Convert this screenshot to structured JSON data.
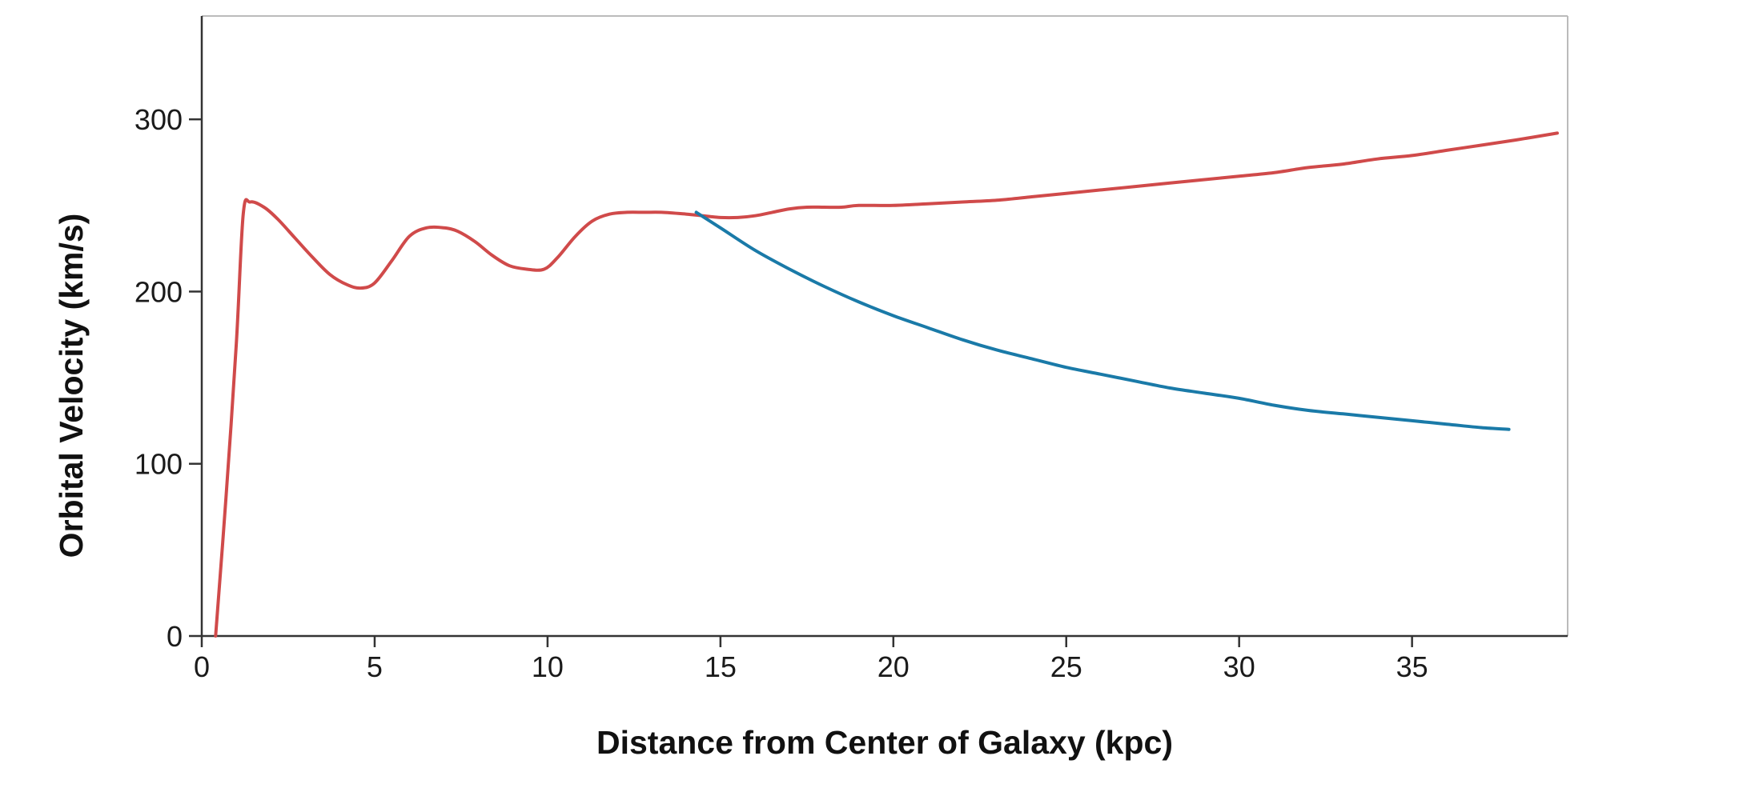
{
  "chart_data": {
    "type": "line",
    "title": "",
    "xlabel": "Distance from Center of Galaxy (kpc)",
    "ylabel": "Orbital Velocity (km/s)",
    "xlim": [
      0,
      39.5
    ],
    "ylim": [
      0,
      360
    ],
    "xticks": [
      0,
      5,
      10,
      15,
      20,
      25,
      30,
      35
    ],
    "yticks": [
      0,
      100,
      200,
      300
    ],
    "grid": false,
    "legend": "none",
    "colors": {
      "axis": "#333333",
      "frame": "#bbbbbb",
      "observed": "#d04a4a",
      "predicted": "#1a7aa8"
    },
    "series": [
      {
        "x": [
          0.4,
          0.7,
          1.0,
          1.2,
          1.4,
          1.8,
          2.2,
          2.7,
          3.2,
          3.7,
          4.2,
          4.6,
          5.0,
          5.5,
          6.0,
          6.5,
          7.0,
          7.4,
          7.9,
          8.4,
          8.9,
          9.4,
          9.9,
          10.3,
          10.8,
          11.3,
          11.8,
          12.3,
          12.8,
          13.3,
          14.0,
          14.5,
          15.0,
          15.5,
          16.0,
          16.5,
          17.0,
          17.5,
          18.0,
          18.5,
          19.0,
          20.0,
          21.0,
          22.0,
          23.0,
          24.0,
          25.0,
          26.0,
          27.0,
          28.0,
          29.0,
          30.0,
          31.0,
          32.0,
          33.0,
          34.0,
          35.0,
          36.0,
          37.0,
          38.0,
          39.2
        ],
        "values": [
          0,
          80,
          170,
          245,
          252,
          249,
          242,
          231,
          220,
          210,
          204,
          202,
          205,
          218,
          232,
          237,
          237,
          235,
          229,
          221,
          215,
          213,
          213,
          220,
          232,
          241,
          245,
          246,
          246,
          246,
          245,
          244,
          243,
          243,
          244,
          246,
          248,
          249,
          249,
          249,
          250,
          250,
          251,
          252,
          253,
          255,
          257,
          259,
          261,
          263,
          265,
          267,
          269,
          272,
          274,
          277,
          279,
          282,
          285,
          288,
          292
        ]
      },
      {
        "x": [
          14.3,
          15,
          16,
          17,
          18,
          19,
          20,
          21,
          22,
          23,
          24,
          25,
          26,
          27,
          28,
          29,
          30,
          31,
          32,
          33,
          34,
          35,
          36,
          37,
          37.8
        ],
        "values": [
          246,
          237,
          224,
          213,
          203,
          194,
          186,
          179,
          172,
          166,
          161,
          156,
          152,
          148,
          144,
          141,
          138,
          134,
          131,
          129,
          127,
          125,
          123,
          121,
          120
        ]
      }
    ]
  }
}
